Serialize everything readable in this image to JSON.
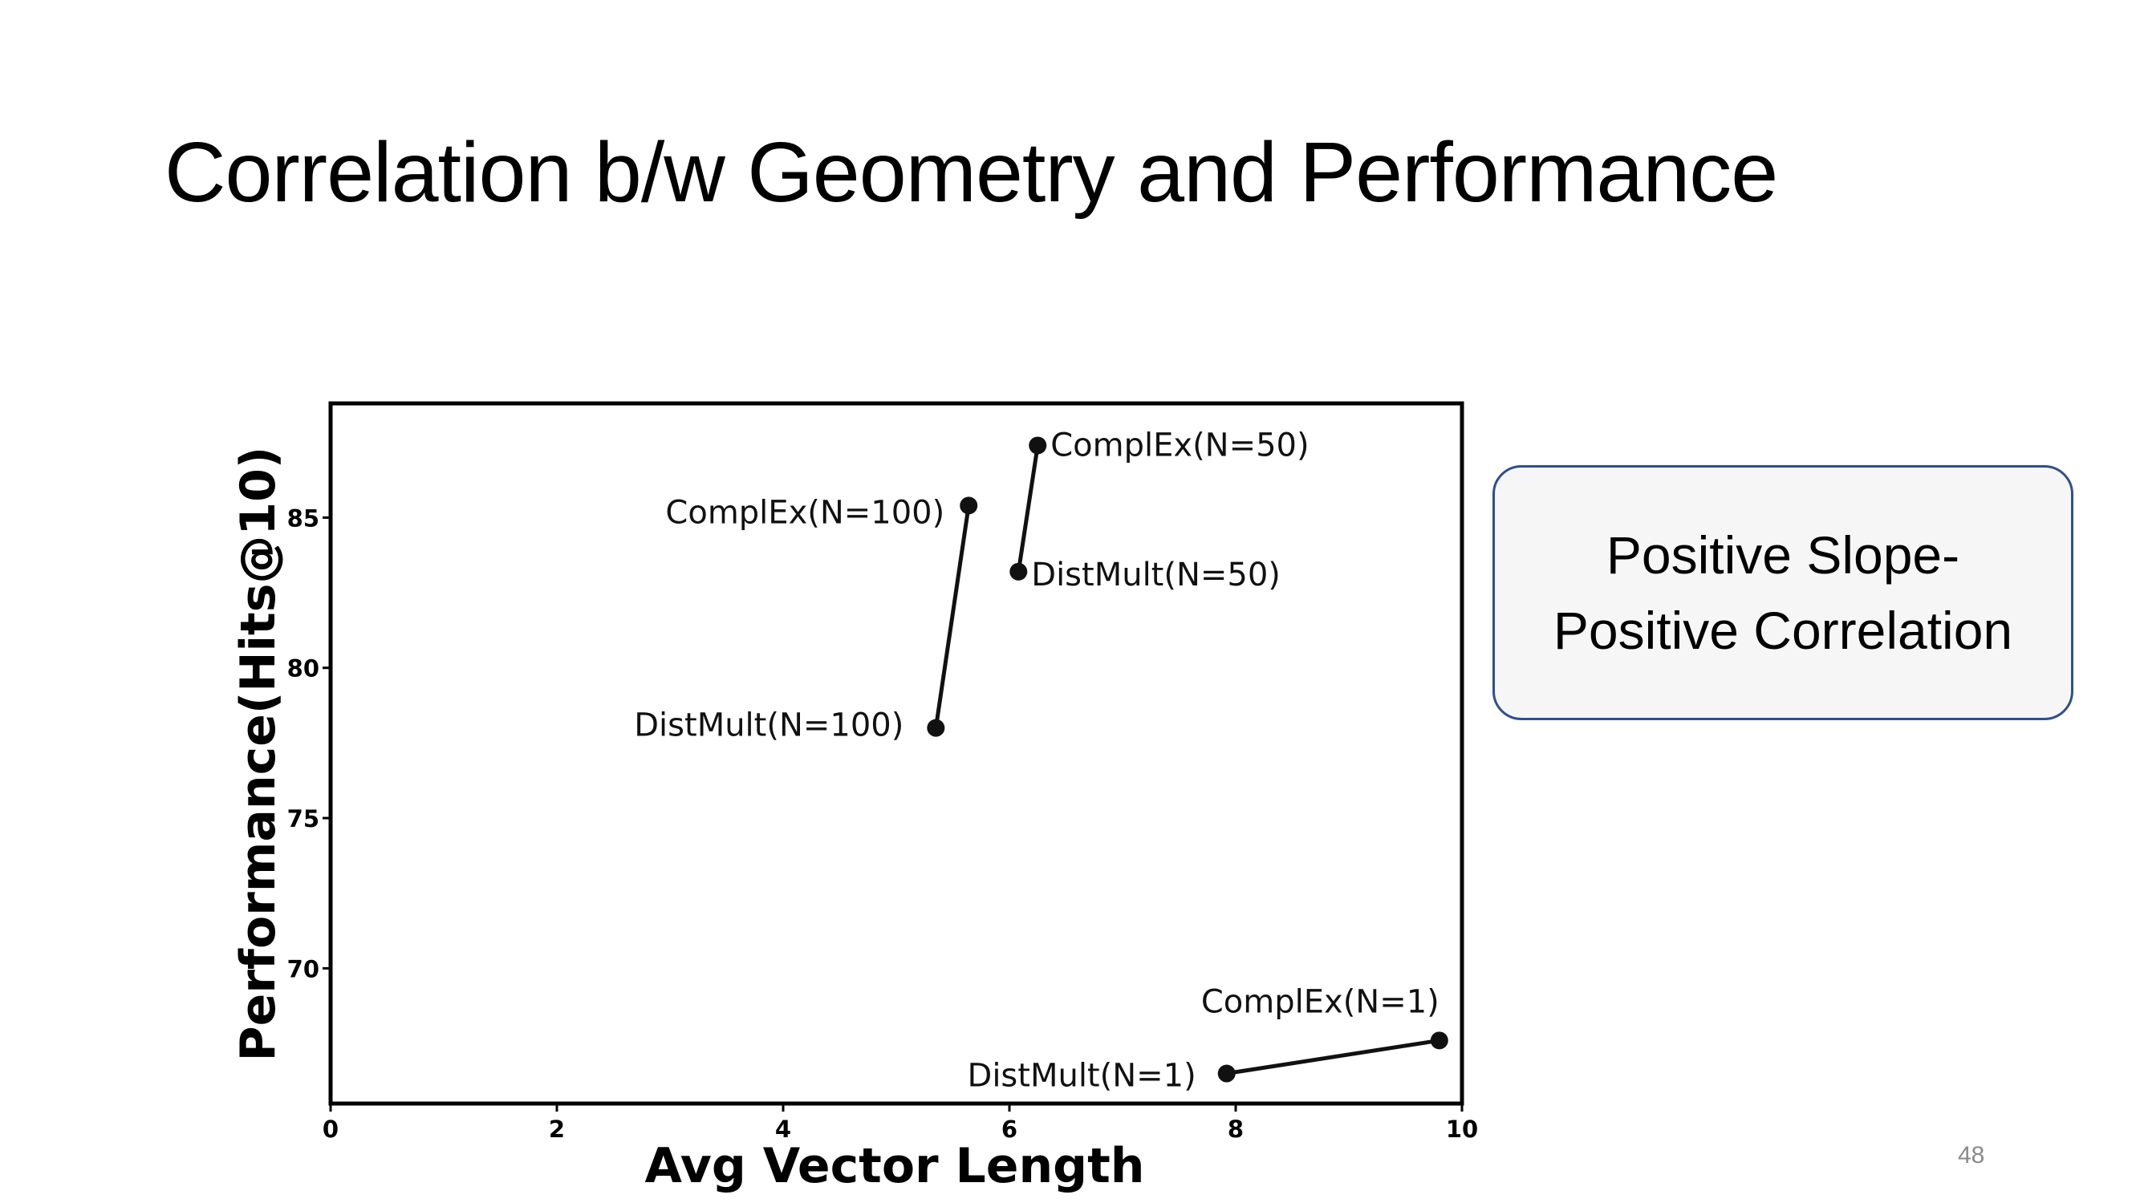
{
  "slide": {
    "title": "Correlation b/w Geometry and Performance",
    "callout_line1": "Positive Slope-",
    "callout_line2": "Positive Correlation",
    "page_number": "48"
  },
  "chart_data": {
    "type": "line",
    "xlabel": "Avg Vector Length",
    "ylabel": "Performance(Hits@10)",
    "xlim": [
      0,
      10
    ],
    "ylim": [
      65.5,
      88.8
    ],
    "xticks": [
      0,
      2,
      4,
      6,
      8,
      10
    ],
    "yticks": [
      70,
      75,
      80,
      85
    ],
    "grid": false,
    "color": "#111111",
    "series": [
      {
        "points": [
          {
            "x": 5.35,
            "y": 78.0,
            "label": "DistMult(N=100)"
          },
          {
            "x": 5.64,
            "y": 85.4,
            "label": "ComplEx(N=100)"
          }
        ]
      },
      {
        "points": [
          {
            "x": 6.08,
            "y": 83.2,
            "label": "DistMult(N=50)"
          },
          {
            "x": 6.25,
            "y": 87.4,
            "label": "ComplEx(N=50)"
          }
        ]
      },
      {
        "points": [
          {
            "x": 7.92,
            "y": 66.5,
            "label": "DistMult(N=1)"
          },
          {
            "x": 9.8,
            "y": 67.6,
            "label": "ComplEx(N=1)"
          }
        ]
      }
    ]
  }
}
